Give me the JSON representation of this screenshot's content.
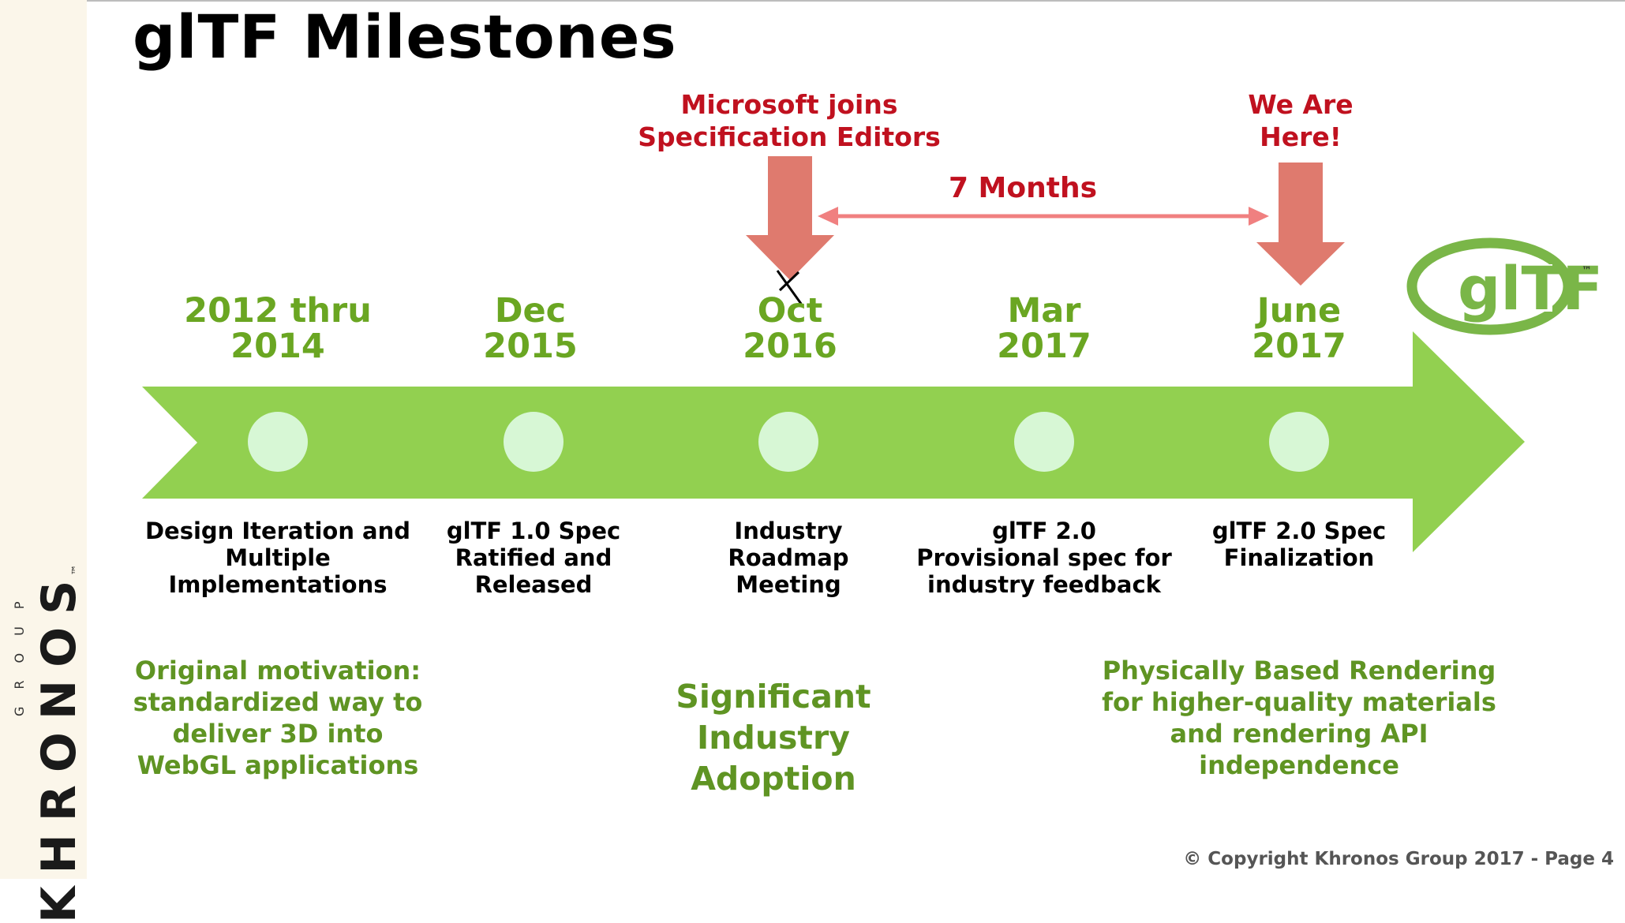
{
  "title": "glTF Milestones",
  "brand": {
    "side_logo": "KHRONOS",
    "side_logo_sub": "GROUP",
    "side_logo_tm": "™",
    "gltf_logo": "glTF",
    "gltf_tm": "™"
  },
  "callouts": {
    "microsoft": [
      "Microsoft joins",
      "Specification Editors"
    ],
    "here": [
      "We Are",
      "Here!"
    ],
    "duration": "7 Months"
  },
  "milestones": [
    {
      "date": [
        "2012 thru",
        "2014"
      ],
      "desc": [
        "Design Iteration and",
        "Multiple",
        "Implementations"
      ]
    },
    {
      "date": [
        "Dec",
        "2015"
      ],
      "desc": [
        "glTF 1.0 Spec",
        "Ratified and",
        "Released"
      ]
    },
    {
      "date": [
        "Oct",
        "2016"
      ],
      "desc": [
        "Industry",
        "Roadmap",
        "Meeting"
      ]
    },
    {
      "date": [
        "Mar",
        "2017"
      ],
      "desc": [
        "glTF 2.0",
        "Provisional spec for",
        "industry feedback"
      ]
    },
    {
      "date": [
        "June",
        "2017"
      ],
      "desc": [
        "glTF 2.0 Spec",
        "Finalization"
      ]
    }
  ],
  "notes": {
    "left": [
      "Original motivation:",
      "standardized way to",
      "deliver 3D into",
      "WebGL applications"
    ],
    "center": [
      "Significant",
      "Industry Adoption"
    ],
    "right": [
      "Physically Based Rendering",
      "for higher-quality materials",
      "and rendering API",
      "independence"
    ]
  },
  "copyright": "© Copyright Khronos Group 2017 - Page 4",
  "colors": {
    "arrow": "#92d050",
    "node": "#d7f7d5",
    "red_text": "#c0111f",
    "red_arrow": "#df7a6e",
    "green_text": "#6aa622"
  }
}
